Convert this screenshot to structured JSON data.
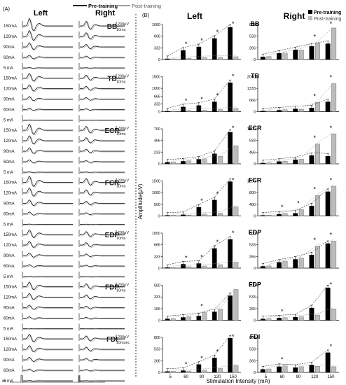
{
  "panel_a": {
    "label": "(A)",
    "left_header": "Left",
    "right_header": "Right",
    "intensity_labels": [
      "150mA",
      "120mA",
      "90mA",
      "60mA",
      "5 mA"
    ],
    "sti_label": "sti",
    "muscles": [
      {
        "name": "BB",
        "amp_scale": "200μV",
        "time_scale": "10ms"
      },
      {
        "name": "TB",
        "amp_scale": "200μV",
        "time_scale": "10ms"
      },
      {
        "name": "ECR",
        "amp_scale": "200μV",
        "time_scale": "10ms"
      },
      {
        "name": "FCR",
        "amp_scale": "200μV",
        "time_scale": "10ms"
      },
      {
        "name": "EDP",
        "amp_scale": "200μV",
        "time_scale": "10ms"
      },
      {
        "name": "FDP",
        "amp_scale": "200μV",
        "time_scale": "10ms"
      },
      {
        "name": "FDI",
        "amp_scale": "200μV",
        "time_scale": "10msec"
      }
    ]
  },
  "panel_b": {
    "label": "(B)"
  },
  "chart_data": {
    "type": "bar",
    "legend": [
      "Pre-training",
      "Post-training"
    ],
    "legend_colors": {
      "Pre-training": "#000000",
      "Post-training": "#bcbcbc"
    },
    "xlabel": "Stimulation Intensity (mA)",
    "ylabel": "Amplitude(μV)",
    "x_tick_labels": [
      "5",
      "60",
      "90",
      "120",
      "150"
    ],
    "column_headers": [
      "Left",
      "Right"
    ],
    "panels": [
      {
        "muscle": "BB",
        "side": "Left",
        "yticks": [
          "0",
          "333",
          "666",
          "1000"
        ],
        "ylim": [
          0,
          1000
        ],
        "pre": [
          20,
          260,
          360,
          600,
          920
        ],
        "post": [
          20,
          35,
          60,
          65,
          80
        ],
        "stars": [
          1,
          2,
          3,
          4
        ]
      },
      {
        "muscle": "BB",
        "side": "Right",
        "yticks": [
          "0",
          "266",
          "533",
          "800"
        ],
        "ylim": [
          0,
          800
        ],
        "pre": [
          60,
          140,
          220,
          300,
          360
        ],
        "post": [
          70,
          150,
          220,
          380,
          720
        ],
        "stars": [
          3,
          4
        ]
      },
      {
        "muscle": "TB",
        "side": "Left",
        "yticks": [
          "0",
          "333",
          "666",
          "1000",
          "1500"
        ],
        "ylim": [
          0,
          1500
        ],
        "pre": [
          20,
          200,
          260,
          420,
          1240
        ],
        "post": [
          25,
          50,
          70,
          90,
          140
        ],
        "stars": [
          1,
          2,
          3,
          4
        ]
      },
      {
        "muscle": "TB",
        "side": "Right",
        "yticks": [
          "0",
          "666",
          "1333",
          "2000"
        ],
        "ylim": [
          0,
          2000
        ],
        "pre": [
          40,
          80,
          150,
          210,
          560
        ],
        "post": [
          50,
          110,
          130,
          520,
          1600
        ],
        "stars": [
          3,
          4
        ]
      },
      {
        "muscle": "ECR",
        "side": "Left",
        "yticks": [
          "0",
          "233",
          "466",
          "700"
        ],
        "ylim": [
          0,
          700
        ],
        "pre": [
          30,
          50,
          90,
          200,
          630
        ],
        "post": [
          40,
          60,
          100,
          150,
          360
        ],
        "stars": [
          4
        ]
      },
      {
        "muscle": "ECR",
        "side": "Right",
        "yticks": [
          "0",
          "466",
          "933",
          "1400"
        ],
        "ylim": [
          0,
          1400
        ],
        "pre": [
          30,
          90,
          160,
          330,
          300
        ],
        "post": [
          40,
          110,
          190,
          790,
          1200
        ],
        "stars": [
          3,
          4
        ]
      },
      {
        "muscle": "FCR",
        "side": "Left",
        "yticks": [
          "0",
          "500",
          "1000",
          "1500"
        ],
        "ylim": [
          0,
          1500
        ],
        "pre": [
          25,
          50,
          370,
          680,
          1470
        ],
        "post": [
          30,
          40,
          80,
          120,
          390
        ],
        "stars": [
          2,
          3,
          4
        ]
      },
      {
        "muscle": "FCR",
        "side": "Right",
        "yticks": [
          "0",
          "400",
          "800",
          "1200"
        ],
        "ylim": [
          0,
          1200
        ],
        "pre": [
          20,
          60,
          90,
          340,
          830
        ],
        "post": [
          30,
          90,
          220,
          700,
          1020
        ],
        "stars": [
          1,
          2,
          3,
          4
        ]
      },
      {
        "muscle": "EDP",
        "side": "Left",
        "yticks": [
          "0",
          "333",
          "666",
          "1000"
        ],
        "ylim": [
          0,
          1000
        ],
        "pre": [
          15,
          110,
          130,
          560,
          820
        ],
        "post": [
          20,
          40,
          60,
          100,
          170
        ],
        "stars": [
          1,
          2,
          3,
          4
        ]
      },
      {
        "muscle": "EDP",
        "side": "Right",
        "yticks": [
          "0",
          "266",
          "533",
          "800"
        ],
        "ylim": [
          0,
          800
        ],
        "pre": [
          40,
          130,
          200,
          300,
          560
        ],
        "post": [
          50,
          160,
          230,
          500,
          620
        ],
        "stars": [
          3,
          4
        ]
      },
      {
        "muscle": "FDP",
        "side": "Left",
        "yticks": [
          "0",
          "166",
          "333",
          "500"
        ],
        "ylim": [
          0,
          500
        ],
        "pre": [
          20,
          40,
          60,
          120,
          350
        ],
        "post": [
          25,
          50,
          110,
          160,
          440
        ],
        "stars": [
          2
        ]
      },
      {
        "muscle": "FDP",
        "side": "Right",
        "yticks": [
          "0",
          "266",
          "533",
          "800"
        ],
        "ylim": [
          0,
          800
        ],
        "pre": [
          30,
          50,
          70,
          280,
          740
        ],
        "post": [
          40,
          60,
          80,
          120,
          260
        ],
        "stars": [
          1,
          4
        ]
      },
      {
        "muscle": "FDI",
        "side": "Left",
        "yticks": [
          "0",
          "266",
          "533",
          "800"
        ],
        "ylim": [
          0,
          800
        ],
        "pre": [
          20,
          40,
          180,
          330,
          780
        ],
        "post": [
          25,
          30,
          50,
          90,
          160
        ],
        "stars": [
          1,
          2,
          3,
          4
        ]
      },
      {
        "muscle": "FDI",
        "side": "Right",
        "yticks": [
          "0",
          "266",
          "533",
          "800"
        ],
        "ylim": [
          0,
          800
        ],
        "pre": [
          70,
          130,
          110,
          170,
          450
        ],
        "post": [
          80,
          150,
          130,
          140,
          130
        ],
        "stars": [
          1,
          4
        ]
      }
    ]
  }
}
